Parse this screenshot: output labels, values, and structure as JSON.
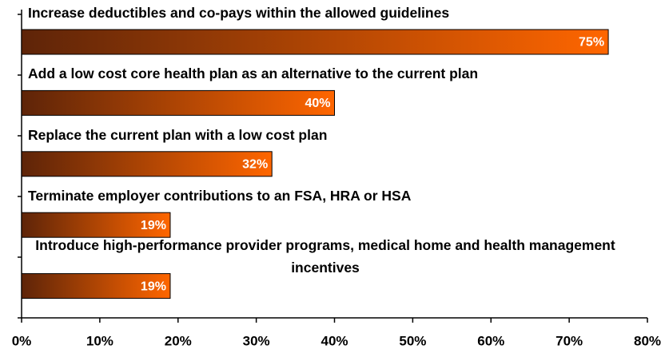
{
  "chart_data": {
    "type": "bar",
    "orientation": "horizontal",
    "categories": [
      "Increase deductibles and co-pays within the allowed guidelines",
      "Add a low cost core health plan as an alternative to the current plan",
      "Replace the current plan with a low cost plan",
      "Terminate employer contributions to an FSA, HRA or HSA",
      "Introduce high-performance provider programs, medical home and health management incentives"
    ],
    "values": [
      75,
      40,
      32,
      19,
      19
    ],
    "value_labels": [
      "75%",
      "40%",
      "32%",
      "19%",
      "19%"
    ],
    "color": "#ff6600",
    "xlim": [
      0,
      80
    ],
    "xticks": [
      {
        "value": 0,
        "label": "0%"
      },
      {
        "value": 10,
        "label": "10%"
      },
      {
        "value": 20,
        "label": "20%"
      },
      {
        "value": 30,
        "label": "30%"
      },
      {
        "value": 40,
        "label": "40%"
      },
      {
        "value": 50,
        "label": "50%"
      },
      {
        "value": 60,
        "label": "60%"
      },
      {
        "value": 70,
        "label": "70%"
      },
      {
        "value": 80,
        "label": "80%"
      }
    ],
    "grid": false
  }
}
